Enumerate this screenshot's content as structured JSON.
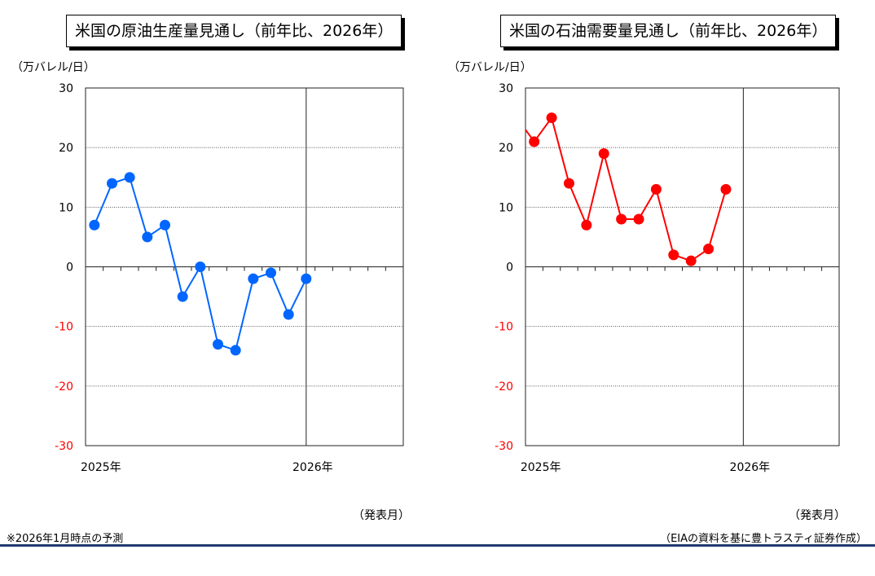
{
  "chart_data": [
    {
      "type": "line",
      "title": "米国の原油生産量見通し（前年比、2026年）",
      "ylabel": "（万バレル/日）",
      "xlabel": "（発表月）",
      "ylim": [
        -30,
        30
      ],
      "yticks": [
        30,
        20,
        10,
        0,
        -10,
        -20,
        -30
      ],
      "xtick_labels": [
        "2025年",
        "2026年"
      ],
      "xtick_month_index": [
        0,
        12
      ],
      "xlim_months": [
        -0.5,
        17.5
      ],
      "grid": true,
      "series": [
        {
          "color": "#0066ff",
          "points": [
            {
              "month": 0,
              "value": 7
            },
            {
              "month": 1,
              "value": 14
            },
            {
              "month": 2,
              "value": 15
            },
            {
              "month": 3,
              "value": 5
            },
            {
              "month": 4,
              "value": 7
            },
            {
              "month": 5,
              "value": -5
            },
            {
              "month": 6,
              "value": 0
            },
            {
              "month": 7,
              "value": -13
            },
            {
              "month": 8,
              "value": -14
            },
            {
              "month": 9,
              "value": -2
            },
            {
              "month": 10,
              "value": -1
            },
            {
              "month": 11,
              "value": -8
            },
            {
              "month": 12,
              "value": -2
            }
          ]
        }
      ]
    },
    {
      "type": "line",
      "title": "米国の石油需要量見通し（前年比、2026年）",
      "ylabel": "（万バレル/日）",
      "xlabel": "（発表月）",
      "ylim": [
        -30,
        30
      ],
      "yticks": [
        30,
        20,
        10,
        0,
        -10,
        -20,
        -30
      ],
      "xtick_labels": [
        "2025年",
        "2026年"
      ],
      "xtick_month_index": [
        0,
        12
      ],
      "xlim_months": [
        -0.5,
        17.5
      ],
      "grid": true,
      "series": [
        {
          "color": "#ff0000",
          "line_from": {
            "month": -0.5,
            "value": 23
          },
          "points": [
            {
              "month": 0,
              "value": 21
            },
            {
              "month": 1,
              "value": 25
            },
            {
              "month": 2,
              "value": 14
            },
            {
              "month": 3,
              "value": 7
            },
            {
              "month": 4,
              "value": 19
            },
            {
              "month": 5,
              "value": 8
            },
            {
              "month": 6,
              "value": 8
            },
            {
              "month": 7,
              "value": 13
            },
            {
              "month": 8,
              "value": 2
            },
            {
              "month": 9,
              "value": 1
            },
            {
              "month": 10,
              "value": 3
            },
            {
              "month": 11,
              "value": 13
            }
          ]
        }
      ]
    }
  ],
  "footnote_left": "※2026年1月時点の予測",
  "footnote_right": "（EIAの資料を基に豊トラスティ証券作成）",
  "colors": {
    "negative_tick": "#ff0000",
    "rule": "#1f3a6e"
  }
}
